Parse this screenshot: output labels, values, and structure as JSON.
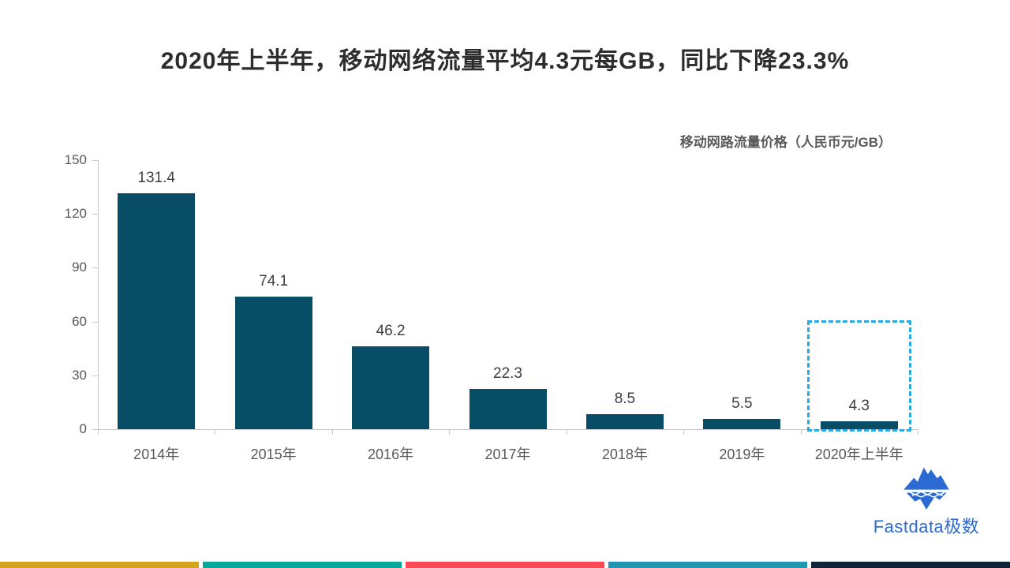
{
  "page": {
    "title": "2020年上半年，移动网络流量平均4.3元每GB，同比下降23.3%"
  },
  "chart_data": {
    "type": "bar",
    "title": "移动网路流量价格（人民币元/GB）",
    "categories": [
      "2014年",
      "2015年",
      "2016年",
      "2017年",
      "2018年",
      "2019年",
      "2020年上半年"
    ],
    "values": [
      131.4,
      74.1,
      46.2,
      22.3,
      8.5,
      5.5,
      4.3
    ],
    "value_labels": [
      "131.4",
      "74.1",
      "46.2",
      "22.3",
      "8.5",
      "5.5",
      "4.3"
    ],
    "xlabel": "",
    "ylabel": "",
    "ylim": [
      0,
      150
    ],
    "yticks": [
      0,
      30,
      60,
      90,
      120,
      150
    ],
    "grid": false,
    "legend_position": "top-right",
    "bar_color": "#084d66",
    "axis_line_color": "#c9c9c9",
    "tick_label_color": "#595959",
    "value_label_color": "#404040",
    "highlight": {
      "category": "2020年上半年",
      "style": "dashed-box",
      "color": "#29a9e1"
    }
  },
  "branding": {
    "logo_text": "Fastdata极数",
    "logo_color": "#2b6ad3",
    "icon": "iceberg-icon"
  },
  "footer_stripes": [
    "#d5a41c",
    "#07a79a",
    "#fa4a55",
    "#2096b3",
    "#0f2436"
  ]
}
